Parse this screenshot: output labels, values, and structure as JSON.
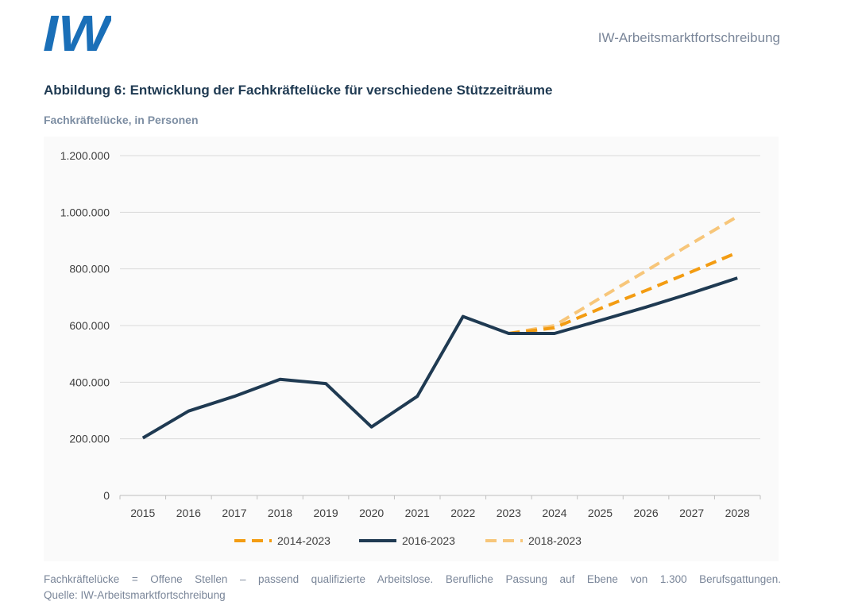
{
  "header": {
    "logo_text": "IW",
    "publication": "IW-Arbeitsmarktfortschreibung"
  },
  "figure": {
    "title": "Abbildung 6: Entwicklung der Fachkräftelücke für verschiedene Stützzeiträume",
    "subtitle": "Fachkräftelücke, in Personen"
  },
  "footer": {
    "note": "Fachkräftelücke = Offene Stellen – passend qualifizierte Arbeitslose. Berufliche Passung auf Ebene von 1.300 Berufsgattungen.",
    "source": "Quelle: IW-Arbeitsmarktfortschreibung"
  },
  "colors": {
    "brand": "#1a6fb8",
    "navy": "#1f3a52",
    "orange": "#f39c12",
    "light_orange": "#f7c67a",
    "grid": "#d9d9d9"
  },
  "chart_data": {
    "type": "line",
    "x": [
      "2015",
      "2016",
      "2017",
      "2018",
      "2019",
      "2020",
      "2021",
      "2022",
      "2023",
      "2024",
      "2025",
      "2026",
      "2027",
      "2028"
    ],
    "ylim": [
      0,
      1200000
    ],
    "y_ticks": [
      0,
      200000,
      400000,
      600000,
      800000,
      1000000,
      1200000
    ],
    "y_tick_labels": [
      "0",
      "200.000",
      "400.000",
      "600.000",
      "800.000",
      "1.000.000",
      "1.200.000"
    ],
    "grid": true,
    "legend_position": "bottom",
    "series": [
      {
        "name": "2014-2023",
        "style": "dashed",
        "color": "#f39c12",
        "values": [
          null,
          null,
          null,
          null,
          null,
          null,
          null,
          null,
          572000,
          592000,
          660000,
          724000,
          790000,
          858000
        ]
      },
      {
        "name": "2016-2023",
        "style": "solid",
        "color": "#1f3a52",
        "values": [
          203000,
          298000,
          350000,
          410000,
          395000,
          242000,
          350000,
          632000,
          572000,
          572000,
          618000,
          665000,
          715000,
          768000
        ]
      },
      {
        "name": "2018-2023",
        "style": "dashed",
        "color": "#f7c67a",
        "values": [
          null,
          null,
          null,
          null,
          null,
          null,
          null,
          null,
          572000,
          600000,
          697000,
          793000,
          890000,
          985000
        ]
      }
    ]
  }
}
